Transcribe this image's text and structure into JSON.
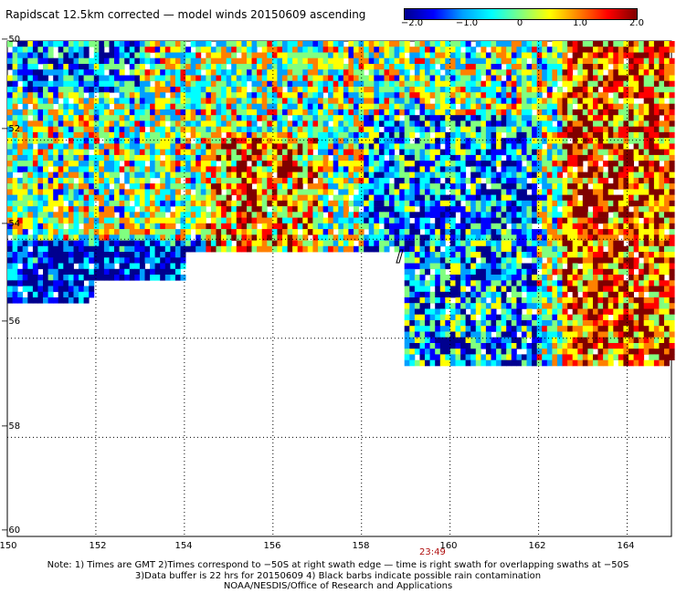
{
  "title": "Rapidscat 12.5km corrected — model winds 20150609 ascending",
  "colorbar": {
    "labels": [
      "−2.0",
      "−1.0",
      "0",
      "1.0",
      "2.0"
    ],
    "colors": [
      "#00008f",
      "#0000ff",
      "#00a0ff",
      "#00ffff",
      "#80ff80",
      "#ffff00",
      "#ff8000",
      "#ff0000",
      "#800000"
    ]
  },
  "map": {
    "lat_labels": [
      "−50",
      "−52",
      "−54",
      "−56",
      "−58",
      "−60"
    ],
    "lon_labels": [
      "150",
      "152",
      "154",
      "156",
      "158",
      "160",
      "162",
      "164"
    ],
    "lat_range": [
      -60,
      -50
    ],
    "lon_range": [
      150,
      165
    ],
    "grid": "dotted",
    "value_range": [
      -2.0,
      2.0
    ]
  },
  "time_label": "23:49",
  "notes": [
    "Note: 1) Times are GMT 2)Times correspond to −50S at right swath edge — time is right swath for overlapping swaths at −50S",
    "3)Data buffer is 22 hrs for 20150609 4) Black barbs indicate possible rain contamination",
    "NOAA/NESDIS/Office of Research and Applications"
  ]
}
